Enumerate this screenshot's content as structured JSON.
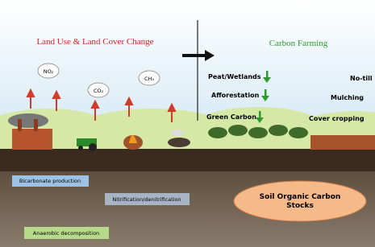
{
  "left": {
    "title": "Land Use & Land Cover Change",
    "gases": [
      "NO₂",
      "CO₂",
      "CH₄"
    ]
  },
  "right": {
    "title": "Carbon Farming",
    "practices_left": [
      "Peat/Wetlands",
      "Afforestation",
      "Green Carbon"
    ],
    "practices_right": [
      "No-till",
      "Mulching",
      "Cover cropping"
    ]
  },
  "soil": {
    "processes": [
      "Bicarbonate production",
      "Nitrification/denitrification",
      "Anaerobic decomposition"
    ],
    "stock": "Soil Organic Carbon Stocks"
  }
}
